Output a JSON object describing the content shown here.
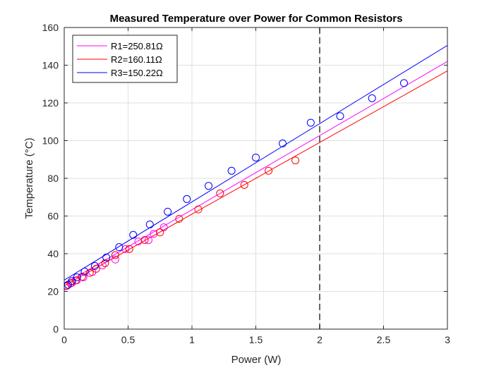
{
  "chart_data": {
    "type": "scatter",
    "title": "Measured Temperature over Power for Common Resistors",
    "xlabel": "Power (W)",
    "ylabel": "Temperature (°C)",
    "xlim": [
      0,
      3
    ],
    "ylim": [
      0,
      160
    ],
    "xticks": [
      0,
      0.5,
      1,
      1.5,
      2,
      2.5,
      3
    ],
    "xtick_labels": [
      "0",
      "0.5",
      "1",
      "1.5",
      "2",
      "2.5",
      "3"
    ],
    "yticks": [
      0,
      20,
      40,
      60,
      80,
      100,
      120,
      140,
      160
    ],
    "ytick_labels": [
      "0",
      "20",
      "40",
      "60",
      "80",
      "100",
      "120",
      "140",
      "160"
    ],
    "grid": true,
    "legend_position": "top-left",
    "reference_line": {
      "x": 2,
      "style": "dashed",
      "color": "#555555"
    },
    "series": [
      {
        "name": "R1=250.81Ω",
        "color": "#ff00ff",
        "fit": {
          "x": [
            0,
            3
          ],
          "y": [
            24.0,
            142.0
          ]
        },
        "points": [
          {
            "x": 0.01,
            "y": 22.8
          },
          {
            "x": 0.03,
            "y": 23.5
          },
          {
            "x": 0.06,
            "y": 24.6
          },
          {
            "x": 0.1,
            "y": 26.0
          },
          {
            "x": 0.15,
            "y": 27.5
          },
          {
            "x": 0.22,
            "y": 30.3
          },
          {
            "x": 0.3,
            "y": 33.8
          },
          {
            "x": 0.4,
            "y": 36.9
          },
          {
            "x": 0.48,
            "y": 42.5
          },
          {
            "x": 0.58,
            "y": 46.5
          },
          {
            "x": 0.66,
            "y": 47.2
          },
          {
            "x": 0.7,
            "y": 50.5
          },
          {
            "x": 0.78,
            "y": 54.0
          }
        ]
      },
      {
        "name": "R2=160.11Ω",
        "color": "#ff0000",
        "fit": {
          "x": [
            0,
            3
          ],
          "y": [
            23.0,
            137.0
          ]
        },
        "points": [
          {
            "x": 0.02,
            "y": 23.0
          },
          {
            "x": 0.05,
            "y": 24.3
          },
          {
            "x": 0.09,
            "y": 25.8
          },
          {
            "x": 0.14,
            "y": 27.8
          },
          {
            "x": 0.2,
            "y": 29.8
          },
          {
            "x": 0.25,
            "y": 32.0
          },
          {
            "x": 0.32,
            "y": 35.0
          },
          {
            "x": 0.4,
            "y": 39.3
          },
          {
            "x": 0.51,
            "y": 42.5
          },
          {
            "x": 0.63,
            "y": 47.3
          },
          {
            "x": 0.75,
            "y": 51.3
          },
          {
            "x": 0.9,
            "y": 58.5
          },
          {
            "x": 1.05,
            "y": 63.5
          },
          {
            "x": 1.22,
            "y": 72.0
          },
          {
            "x": 1.41,
            "y": 76.5
          },
          {
            "x": 1.6,
            "y": 84.0
          },
          {
            "x": 1.81,
            "y": 89.5
          }
        ]
      },
      {
        "name": "R3=150.22Ω",
        "color": "#0000ff",
        "fit": {
          "x": [
            0,
            3
          ],
          "y": [
            26.0,
            150.5
          ]
        },
        "points": [
          {
            "x": 0.03,
            "y": 23.5
          },
          {
            "x": 0.06,
            "y": 25.5
          },
          {
            "x": 0.1,
            "y": 27.5
          },
          {
            "x": 0.16,
            "y": 30.5
          },
          {
            "x": 0.24,
            "y": 33.5
          },
          {
            "x": 0.33,
            "y": 38.0
          },
          {
            "x": 0.43,
            "y": 43.5
          },
          {
            "x": 0.54,
            "y": 50.0
          },
          {
            "x": 0.67,
            "y": 55.5
          },
          {
            "x": 0.81,
            "y": 62.3
          },
          {
            "x": 0.96,
            "y": 69.0
          },
          {
            "x": 1.13,
            "y": 76.0
          },
          {
            "x": 1.31,
            "y": 84.0
          },
          {
            "x": 1.5,
            "y": 91.0
          },
          {
            "x": 1.71,
            "y": 98.5
          },
          {
            "x": 1.93,
            "y": 109.5
          },
          {
            "x": 2.16,
            "y": 113.0
          },
          {
            "x": 2.41,
            "y": 122.5
          },
          {
            "x": 2.66,
            "y": 130.5
          }
        ]
      }
    ]
  }
}
